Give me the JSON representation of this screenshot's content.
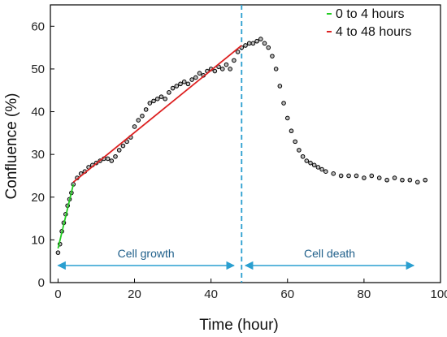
{
  "chart_data": {
    "type": "scatter",
    "title": "",
    "xlabel": "Time (hour)",
    "ylabel": "Confluence (%)",
    "xlim": [
      -2,
      100
    ],
    "ylim": [
      0,
      65
    ],
    "xticks": [
      0,
      20,
      40,
      60,
      80,
      100
    ],
    "yticks": [
      0,
      10,
      20,
      30,
      40,
      50,
      60
    ],
    "grid": false,
    "legend_position": "top-right",
    "legend": [
      {
        "label": "0 to 4 hours",
        "color": "#22cc22"
      },
      {
        "label": "4 to 48 hours",
        "color": "#dd2222"
      }
    ],
    "series": [
      {
        "kind": "points",
        "color": "#000000",
        "x": [
          0,
          0.5,
          1,
          1.5,
          2,
          2.5,
          3,
          3.5,
          4,
          5,
          6,
          7,
          8,
          9,
          10,
          11,
          12,
          13,
          14,
          15,
          16,
          17,
          18,
          19,
          20,
          21,
          22,
          23,
          24,
          25,
          26,
          27,
          28,
          29,
          30,
          31,
          32,
          33,
          34,
          35,
          36,
          37,
          38,
          39,
          40,
          41,
          42,
          43,
          44,
          45,
          46,
          47,
          48,
          49,
          50,
          51,
          52,
          53,
          54,
          55,
          56,
          57,
          58,
          59,
          60,
          61,
          62,
          63,
          64,
          65,
          66,
          67,
          68,
          69,
          70,
          72,
          74,
          76,
          78,
          80,
          82,
          84,
          86,
          88,
          90,
          92,
          94,
          96
        ],
        "y": [
          7,
          9,
          12,
          14,
          16,
          18,
          19.5,
          21,
          23,
          24.5,
          25.5,
          26,
          27,
          27.5,
          28,
          28.5,
          29,
          29,
          28.5,
          29.5,
          31,
          32,
          33,
          34,
          36.5,
          38,
          39,
          40.5,
          42,
          42.5,
          43,
          43.5,
          43,
          44.5,
          45.5,
          46,
          46.5,
          47,
          46.5,
          47.5,
          48,
          49,
          48.5,
          49.5,
          50,
          49.5,
          50.5,
          50,
          51,
          50,
          52,
          54,
          55,
          55.5,
          56,
          56,
          56.5,
          57,
          56,
          55,
          53,
          50,
          46,
          42,
          38.5,
          35.5,
          33,
          31,
          29.5,
          28.5,
          28,
          27.5,
          27,
          26.5,
          26,
          25.5,
          25,
          25,
          25,
          24.5,
          25,
          24.5,
          24,
          24.5,
          24,
          24,
          23.5,
          24
        ]
      },
      {
        "kind": "fit",
        "color": "#22cc22",
        "x": [
          0,
          4
        ],
        "y": [
          8,
          23
        ]
      },
      {
        "kind": "fit",
        "color": "#dd2222",
        "x": [
          4,
          48
        ],
        "y": [
          23.5,
          55.5
        ]
      }
    ],
    "annotations": [
      {
        "kind": "vline",
        "x": 48,
        "color": "#2a9fd0",
        "style": "dashed"
      },
      {
        "kind": "range-arrow",
        "text": "Cell growth",
        "x": [
          0,
          46
        ],
        "y": 4,
        "color": "#2a9fd0"
      },
      {
        "kind": "range-arrow",
        "text": "Cell death",
        "x": [
          49,
          93
        ],
        "y": 4,
        "color": "#2a9fd0"
      }
    ]
  }
}
